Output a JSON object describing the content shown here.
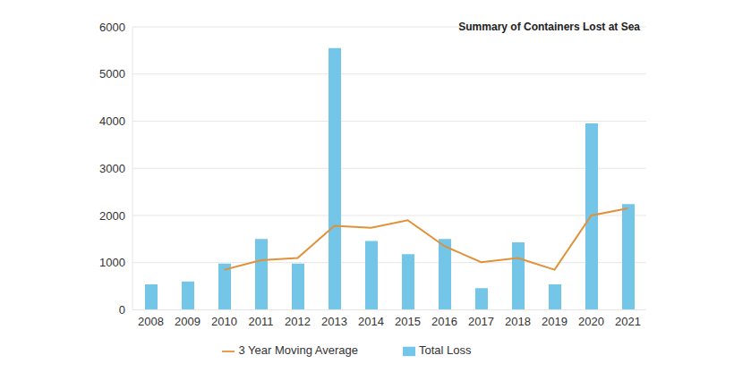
{
  "chart_data": {
    "type": "bar",
    "title": "Summary of Containers Lost at Sea",
    "categories": [
      "2008",
      "2009",
      "2010",
      "2011",
      "2012",
      "2013",
      "2014",
      "2015",
      "2016",
      "2017",
      "2018",
      "2019",
      "2020",
      "2021"
    ],
    "series": [
      {
        "name": "Total Loss",
        "type": "bar",
        "color": "#73c6e7",
        "values": [
          540,
          600,
          980,
          1500,
          980,
          5550,
          1460,
          1180,
          1500,
          460,
          1430,
          540,
          3950,
          2240
        ]
      },
      {
        "name": "3 Year Moving Average",
        "type": "line",
        "color": "#e0913a",
        "values": [
          null,
          null,
          850,
          1050,
          1100,
          1780,
          1740,
          1900,
          1350,
          1010,
          1100,
          850,
          2000,
          2150
        ]
      }
    ],
    "ylim": [
      0,
      6000
    ],
    "yticks": [
      0,
      1000,
      2000,
      3000,
      4000,
      5000,
      6000
    ],
    "grid": true,
    "legend": "bottom"
  }
}
